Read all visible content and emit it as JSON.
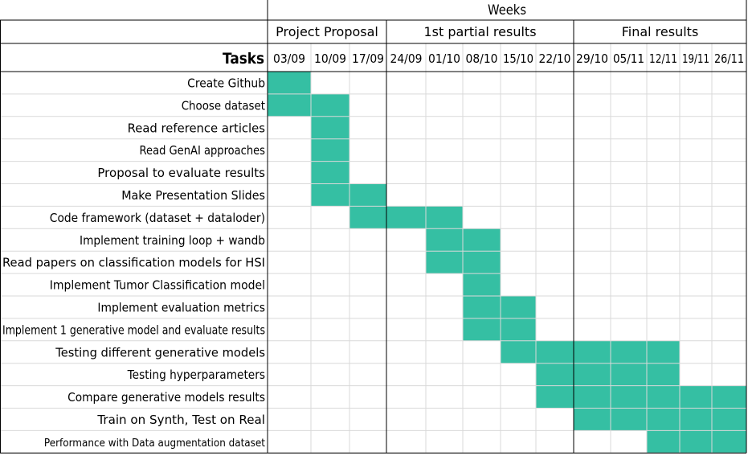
{
  "header": {
    "weeks_label": "Weeks",
    "tasks_label": "Tasks"
  },
  "phases": [
    {
      "label": "Project Proposal",
      "span": [
        0,
        2
      ]
    },
    {
      "label": "1st partial results",
      "span": [
        3,
        7
      ]
    },
    {
      "label": "Final results",
      "span": [
        8,
        12
      ]
    }
  ],
  "colors": {
    "bar": "#35bfa3",
    "grid": "#d9d9d9",
    "border": "#000000",
    "background": "#ffffff"
  },
  "chart_data": {
    "type": "gantt",
    "title": "",
    "xlabel": "Weeks",
    "ylabel": "Tasks",
    "weeks": [
      "03/09",
      "10/09",
      "17/09",
      "24/09",
      "01/10",
      "08/10",
      "15/10",
      "22/10",
      "29/10",
      "05/11",
      "12/11",
      "19/11",
      "26/11"
    ],
    "tasks": [
      {
        "name": "Create Github",
        "start": "03/09",
        "end": "03/09"
      },
      {
        "name": "Choose dataset",
        "start": "03/09",
        "end": "10/09"
      },
      {
        "name": "Read reference articles",
        "start": "10/09",
        "end": "10/09"
      },
      {
        "name": "Read GenAI approaches",
        "start": "10/09",
        "end": "10/09"
      },
      {
        "name": "Proposal to evaluate results",
        "start": "10/09",
        "end": "10/09"
      },
      {
        "name": "Make Presentation Slides",
        "start": "10/09",
        "end": "17/09"
      },
      {
        "name": "Code framework (dataset + dataloder)",
        "start": "17/09",
        "end": "01/10"
      },
      {
        "name": "Implement training loop + wandb",
        "start": "01/10",
        "end": "08/10"
      },
      {
        "name": "Read papers on classification models for HSI",
        "start": "01/10",
        "end": "08/10"
      },
      {
        "name": "Implement Tumor Classification model",
        "start": "08/10",
        "end": "08/10"
      },
      {
        "name": "Implement evaluation metrics",
        "start": "08/10",
        "end": "15/10"
      },
      {
        "name": "Implement 1 generative model and evaluate results",
        "start": "08/10",
        "end": "15/10"
      },
      {
        "name": "Testing different generative models",
        "start": "15/10",
        "end": "12/11"
      },
      {
        "name": "Testing hyperparameters",
        "start": "22/10",
        "end": "12/11"
      },
      {
        "name": "Compare generative models results",
        "start": "22/10",
        "end": "26/11"
      },
      {
        "name": "Train on Synth, Test on Real",
        "start": "29/10",
        "end": "26/11"
      },
      {
        "name": "Performance with Data augmentation dataset",
        "start": "12/11",
        "end": "26/11"
      }
    ]
  }
}
